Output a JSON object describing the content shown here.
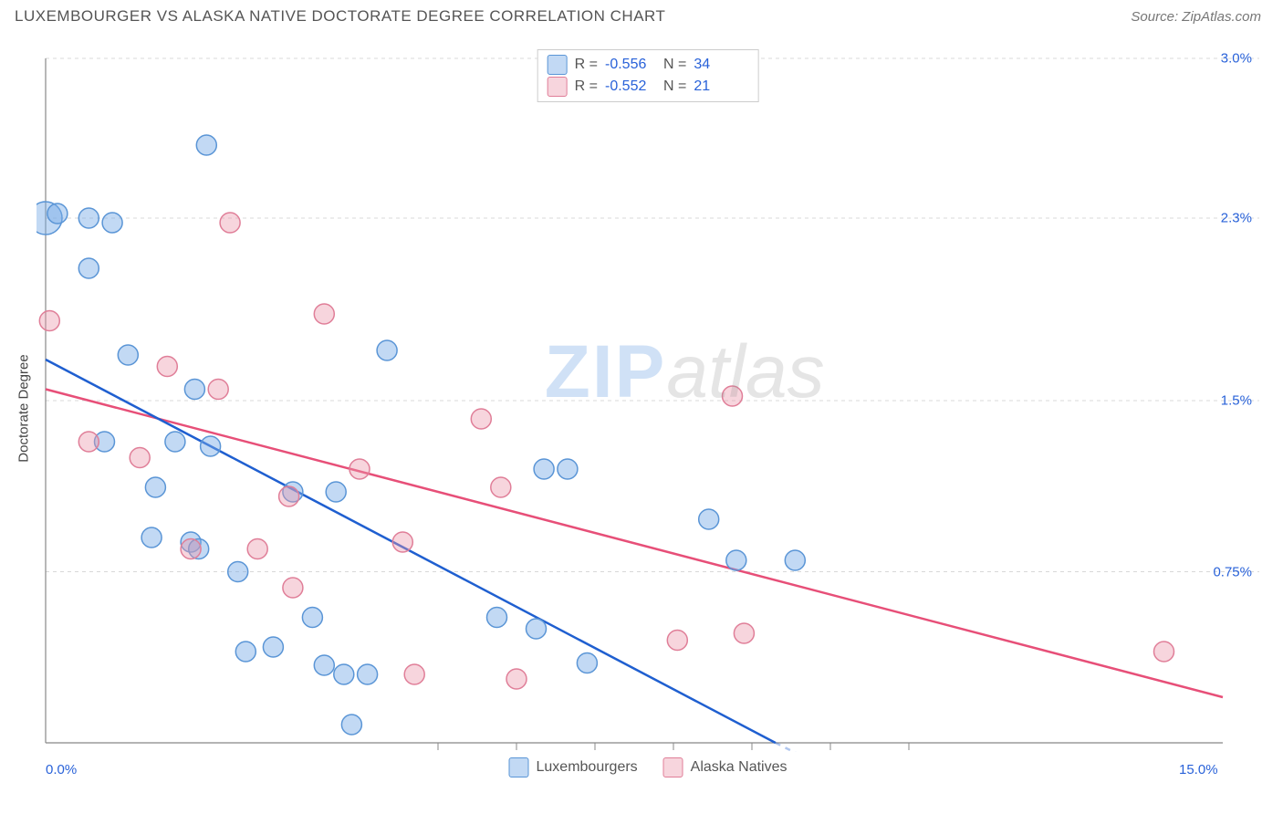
{
  "header": {
    "title": "LUXEMBOURGER VS ALASKA NATIVE DOCTORATE DEGREE CORRELATION CHART",
    "source_prefix": "Source: ",
    "source_name": "ZipAtlas.com"
  },
  "watermark": {
    "zip": "ZIP",
    "atlas": "atlas"
  },
  "chart": {
    "type": "scatter",
    "background_color": "#ffffff",
    "plot_border_color": "#888888",
    "grid_color": "#d8d8d8",
    "grid_dash": "4,4",
    "xlim": [
      0,
      15.0
    ],
    "ylim": [
      0,
      3.0
    ],
    "x_ticks": [
      0.0,
      15.0
    ],
    "x_tick_labels": [
      "0.0%",
      "15.0%"
    ],
    "x_minor_ticks": [
      5,
      6,
      7,
      8,
      9,
      10,
      11
    ],
    "y_ticks": [
      0.75,
      1.5,
      2.3,
      3.0
    ],
    "y_tick_labels": [
      "0.75%",
      "1.5%",
      "2.3%",
      "3.0%"
    ],
    "y_axis_label": "Doctorate Degree",
    "axis_tick_label_color": "#2962d9",
    "axis_label_fontsize": 15,
    "series": {
      "lux": {
        "label": "Luxembourgers",
        "marker_fill": "rgba(120, 170, 230, 0.45)",
        "marker_stroke": "#5a95d6",
        "line_color": "#1f5fd0",
        "line_width": 2.5,
        "marker_r": 11,
        "trend": {
          "x1": 0.0,
          "y1": 1.68,
          "x2": 9.3,
          "y2": 0.0
        },
        "points": [
          {
            "x": 0.0,
            "y": 2.3,
            "r": 18
          },
          {
            "x": 0.15,
            "y": 2.32
          },
          {
            "x": 0.55,
            "y": 2.3
          },
          {
            "x": 0.85,
            "y": 2.28
          },
          {
            "x": 0.55,
            "y": 2.08
          },
          {
            "x": 2.05,
            "y": 2.62
          },
          {
            "x": 0.75,
            "y": 1.32
          },
          {
            "x": 1.05,
            "y": 1.7
          },
          {
            "x": 1.9,
            "y": 1.55
          },
          {
            "x": 1.4,
            "y": 1.12
          },
          {
            "x": 1.35,
            "y": 0.9
          },
          {
            "x": 1.85,
            "y": 0.88
          },
          {
            "x": 1.95,
            "y": 0.85
          },
          {
            "x": 2.55,
            "y": 0.4
          },
          {
            "x": 2.9,
            "y": 0.42
          },
          {
            "x": 3.4,
            "y": 0.55
          },
          {
            "x": 3.55,
            "y": 0.34
          },
          {
            "x": 3.8,
            "y": 0.3
          },
          {
            "x": 3.9,
            "y": 0.08
          },
          {
            "x": 4.1,
            "y": 0.3
          },
          {
            "x": 4.35,
            "y": 1.72
          },
          {
            "x": 3.15,
            "y": 1.1
          },
          {
            "x": 3.7,
            "y": 1.1
          },
          {
            "x": 2.45,
            "y": 0.75
          },
          {
            "x": 5.75,
            "y": 0.55
          },
          {
            "x": 6.25,
            "y": 0.5
          },
          {
            "x": 6.35,
            "y": 1.2
          },
          {
            "x": 6.65,
            "y": 1.2
          },
          {
            "x": 6.9,
            "y": 0.35
          },
          {
            "x": 8.8,
            "y": 0.8
          },
          {
            "x": 8.45,
            "y": 0.98
          },
          {
            "x": 9.55,
            "y": 0.8
          },
          {
            "x": 1.65,
            "y": 1.32
          },
          {
            "x": 2.1,
            "y": 1.3
          }
        ]
      },
      "ala": {
        "label": "Alaska Natives",
        "marker_fill": "rgba(235, 150, 170, 0.40)",
        "marker_stroke": "#e07e98",
        "line_color": "#e74f78",
        "line_width": 2.5,
        "marker_r": 11,
        "trend": {
          "x1": 0.0,
          "y1": 1.55,
          "x2": 15.0,
          "y2": 0.2
        },
        "points": [
          {
            "x": 0.05,
            "y": 1.85
          },
          {
            "x": 0.55,
            "y": 1.32
          },
          {
            "x": 1.2,
            "y": 1.25
          },
          {
            "x": 1.55,
            "y": 1.65
          },
          {
            "x": 2.2,
            "y": 1.55
          },
          {
            "x": 2.35,
            "y": 2.28
          },
          {
            "x": 2.7,
            "y": 0.85
          },
          {
            "x": 3.1,
            "y": 1.08
          },
          {
            "x": 3.15,
            "y": 0.68
          },
          {
            "x": 3.55,
            "y": 1.88
          },
          {
            "x": 4.0,
            "y": 1.2
          },
          {
            "x": 4.55,
            "y": 0.88
          },
          {
            "x": 4.7,
            "y": 0.3
          },
          {
            "x": 5.55,
            "y": 1.42
          },
          {
            "x": 6.0,
            "y": 0.28
          },
          {
            "x": 5.8,
            "y": 1.12
          },
          {
            "x": 8.05,
            "y": 0.45
          },
          {
            "x": 8.75,
            "y": 1.52
          },
          {
            "x": 8.9,
            "y": 0.48
          },
          {
            "x": 14.25,
            "y": 0.4
          },
          {
            "x": 1.85,
            "y": 0.85
          }
        ]
      }
    },
    "stats_box": {
      "rows": [
        {
          "swatch_fill": "rgba(120,170,230,0.45)",
          "swatch_stroke": "#5a95d6",
          "r_label": "R =",
          "r_val": "-0.556",
          "n_label": "N =",
          "n_val": "34"
        },
        {
          "swatch_fill": "rgba(235,150,170,0.40)",
          "swatch_stroke": "#e07e98",
          "r_label": "R =",
          "r_val": "-0.552",
          "n_label": "N =",
          "n_val": "21"
        }
      ]
    },
    "bottom_legend": [
      {
        "swatch_fill": "rgba(120,170,230,0.45)",
        "swatch_stroke": "#5a95d6",
        "label": "Luxembourgers"
      },
      {
        "swatch_fill": "rgba(235,150,170,0.40)",
        "swatch_stroke": "#e07e98",
        "label": "Alaska Natives"
      }
    ]
  }
}
